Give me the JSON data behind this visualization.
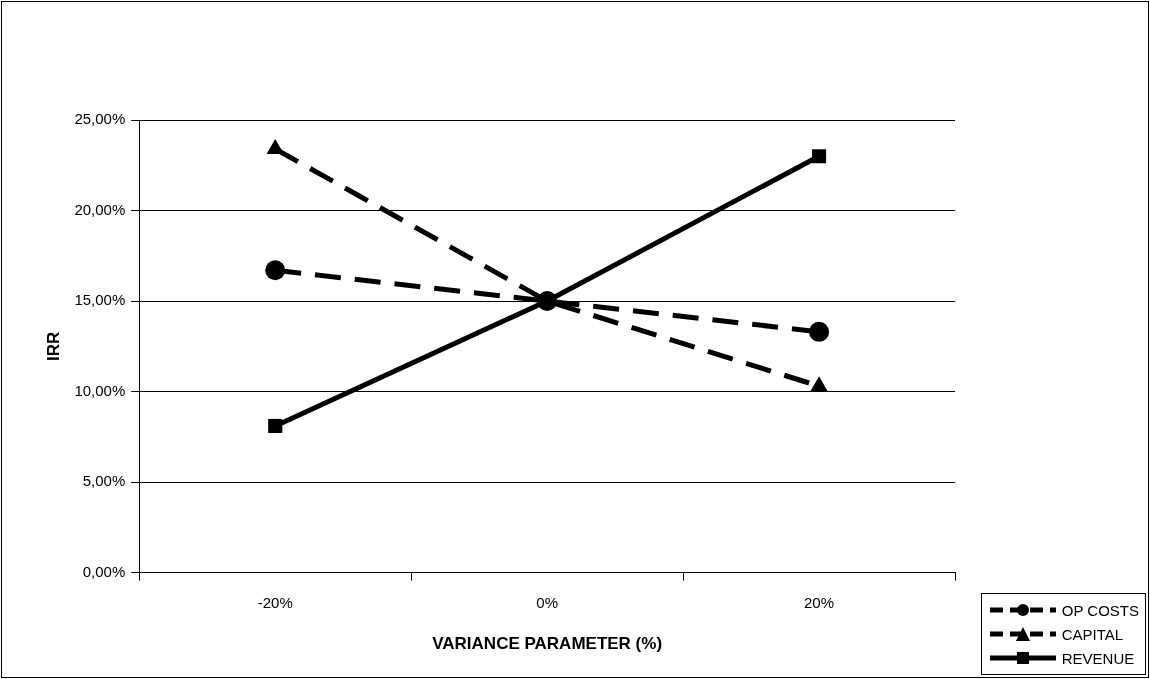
{
  "chart_data": {
    "type": "line",
    "xlabel": "VARIANCE PARAMETER (%)",
    "ylabel": "IRR",
    "categories": [
      "-20%",
      "0%",
      "20%"
    ],
    "series": [
      {
        "name": "OP COSTS",
        "color": "#000000",
        "values": [
          16.7,
          15,
          13.3
        ],
        "marker": "circle",
        "line_style": "dashed"
      },
      {
        "name": "CAPITAL",
        "color": "#000000",
        "values": [
          23.4,
          15,
          10.3
        ],
        "marker": "triangle",
        "line_style": "dashed"
      },
      {
        "name": "REVENUE",
        "color": "#000000",
        "values": [
          8.1,
          15,
          23
        ],
        "marker": "square",
        "line_style": "solid"
      }
    ],
    "ylim": [
      0,
      25
    ],
    "yticks": [
      {
        "value": 0,
        "label": "0,00%"
      },
      {
        "value": 5,
        "label": "5,00%"
      },
      {
        "value": 10,
        "label": "10,00%"
      },
      {
        "value": 15,
        "label": "15,00%"
      },
      {
        "value": 20,
        "label": "20,00%"
      },
      {
        "value": 25,
        "label": "25,00%"
      }
    ],
    "grid": "y",
    "legend": "bottom right"
  }
}
